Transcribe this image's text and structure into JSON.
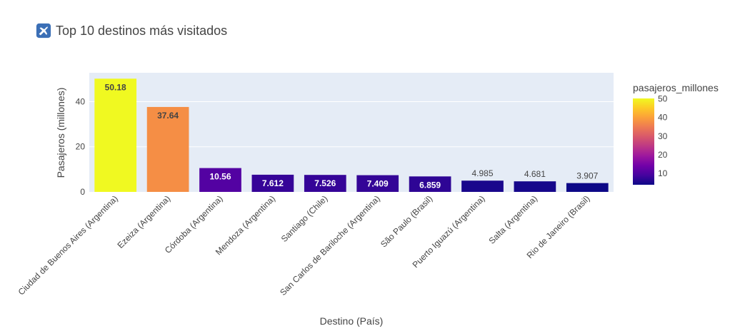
{
  "title": "Top 10 destinos más visitados",
  "icon": "airplane-icon",
  "chart_data": {
    "type": "bar",
    "title": "Top 10 destinos más visitados",
    "xlabel": "Destino (País)",
    "ylabel": "Pasajeros (millones)",
    "ylim": [
      0,
      52.8
    ],
    "yticks": [
      0,
      20,
      40
    ],
    "categories": [
      "Ciudad de Buenos Aires (Argentina)",
      "Ezeiza (Argentina)",
      "Córdoba (Argentina)",
      "Mendoza (Argentina)",
      "Santiago (Chile)",
      "San Carlos de Bariloche (Argentina)",
      "São Paulo (Brasil)",
      "Puerto Iguazú (Argentina)",
      "Salta (Argentina)",
      "Rio de Janeiro (Brasil)"
    ],
    "values": [
      50.18,
      37.64,
      10.56,
      7.612,
      7.526,
      7.409,
      6.859,
      4.985,
      4.681,
      3.907
    ],
    "value_labels": [
      "50.18",
      "37.64",
      "10.56",
      "7.612",
      "7.526",
      "7.409",
      "6.859",
      "4.985",
      "4.681",
      "3.907"
    ],
    "colorbar": {
      "title": "pasajeros_millones",
      "ticks": [
        10,
        20,
        30,
        40,
        50
      ],
      "range": [
        3.907,
        50.18
      ],
      "colorscale": [
        "#0d0887",
        "#46039f",
        "#7201a8",
        "#9c179e",
        "#bd3786",
        "#d8576b",
        "#ed7953",
        "#fb9f3a",
        "#fdca26",
        "#f0f921"
      ]
    },
    "grid": true
  }
}
